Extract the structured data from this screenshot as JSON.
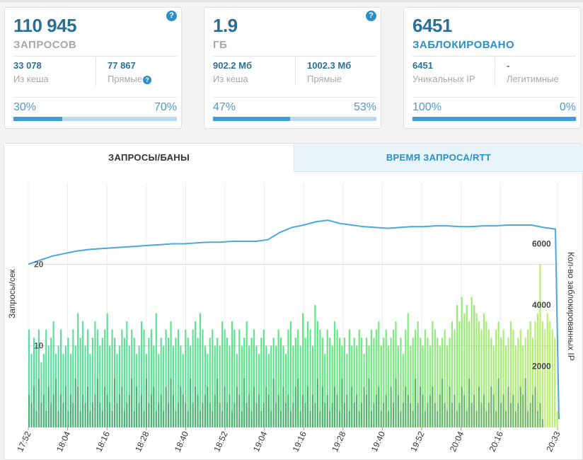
{
  "cards": [
    {
      "value": "110 945",
      "caption": "ЗАПРОСОВ",
      "caption_color": "#a8a8a8",
      "help": "?",
      "left_value": "33 078",
      "left_label": "Из кеша",
      "right_value": "77 867",
      "right_label": "Прямые",
      "right_help": "?",
      "left_pct": "30%",
      "right_pct": "70%",
      "fill_fraction": 0.3
    },
    {
      "value": "1.9",
      "caption": "ГБ",
      "caption_color": "#a8a8a8",
      "help": "?",
      "left_value": "902.2 Мб",
      "left_label": "Из кеша",
      "right_value": "1002.3 Мб",
      "right_label": "Прямые",
      "left_pct": "47%",
      "right_pct": "53%",
      "fill_fraction": 0.47
    },
    {
      "value": "6451",
      "caption": "ЗАБЛОКИРОВАНО",
      "caption_color": "#2a8ec9",
      "left_value": "6451",
      "left_label": "Уникальных IP",
      "right_value": "-",
      "right_label": "Легитимные",
      "left_pct": "100%",
      "right_pct": "0%",
      "fill_fraction": 1.0
    }
  ],
  "tabs": {
    "requests_bans": "ЗАПРОСЫ/БАНЫ",
    "request_time": "ВРЕМЯ ЗАПРОСА/RTT"
  },
  "chart_data": {
    "type": "bar+line",
    "ylabel_left": "Запросы/сек",
    "ylabel_right": "Кол-во заблокированных IP",
    "y_left_ticks": [
      "10",
      "20"
    ],
    "y_right_ticks": [
      "2000",
      "4000",
      "6000"
    ],
    "ylim_left": [
      0,
      30
    ],
    "ylim_right": [
      0,
      8000
    ],
    "x_ticks": [
      "17:52",
      "18:04",
      "18:16",
      "18:28",
      "18:40",
      "18:52",
      "19:04",
      "19:16",
      "19:28",
      "19:40",
      "19:52",
      "20:04",
      "20:16",
      "20:33"
    ],
    "bar_values": [
      12,
      9,
      11,
      10,
      12,
      8,
      9,
      12,
      10,
      11,
      13,
      9,
      10,
      12,
      9,
      10,
      11,
      9,
      12,
      10,
      14,
      11,
      13,
      10,
      12,
      9,
      11,
      13,
      12,
      10,
      11,
      12,
      14,
      10,
      12,
      11,
      9,
      10,
      12,
      11,
      13,
      10,
      12,
      11,
      9,
      10,
      13,
      12,
      9,
      11,
      12,
      10,
      14,
      9,
      11,
      10,
      12,
      11,
      13,
      10,
      11,
      12,
      10,
      9,
      12,
      11,
      10,
      12,
      13,
      11,
      14,
      12,
      10,
      9,
      11,
      12,
      10,
      11,
      10,
      13,
      12,
      11,
      10,
      13,
      12,
      9,
      12,
      10,
      11,
      13,
      10,
      11,
      12,
      10,
      9,
      11,
      12,
      10,
      9,
      10,
      11,
      10,
      12,
      11,
      10,
      9,
      12,
      13,
      10,
      11,
      12,
      10,
      14,
      11,
      13,
      12,
      10,
      15,
      13,
      12,
      11,
      9,
      12,
      11,
      10,
      13,
      12,
      11,
      10,
      11,
      9,
      12,
      10,
      11,
      10,
      12,
      11,
      9,
      11,
      10,
      12,
      11,
      12,
      13,
      10,
      11,
      12,
      10,
      11,
      12,
      13,
      10,
      11,
      9,
      12,
      14,
      10,
      11,
      12,
      13,
      11,
      10,
      12,
      11,
      10,
      13,
      12,
      11,
      10,
      11,
      12,
      10,
      11,
      13,
      12,
      15,
      13,
      16,
      14,
      15,
      13,
      16,
      15,
      14,
      13,
      12,
      14,
      13,
      12,
      11,
      10,
      12,
      13,
      11,
      12,
      10,
      11,
      13,
      12,
      10,
      11,
      12,
      10,
      11,
      12,
      13,
      11,
      13,
      14,
      20,
      13,
      12,
      14,
      13,
      12,
      11,
      2
    ],
    "dark_values": [
      4,
      3,
      5,
      2,
      6,
      3,
      4,
      2,
      5,
      3,
      4,
      6,
      2,
      4,
      3,
      5,
      2,
      4,
      3,
      6,
      5,
      2,
      4,
      3,
      5,
      2,
      3,
      4,
      6,
      3,
      2,
      5,
      4,
      3,
      2,
      6,
      3,
      4,
      5,
      2,
      3,
      4,
      6,
      2,
      5,
      3,
      4,
      2,
      6,
      3,
      4,
      5,
      2,
      3,
      4,
      2,
      5,
      3,
      6,
      4,
      2,
      3,
      5,
      4,
      3,
      2,
      6,
      3,
      5,
      4,
      2,
      3,
      4,
      5,
      3,
      2,
      4,
      6,
      3,
      2,
      5,
      3,
      4,
      2,
      3,
      5,
      4,
      2,
      6,
      3,
      4,
      2,
      5,
      3,
      4,
      2,
      3,
      5,
      4,
      2,
      6,
      3,
      4,
      2,
      5,
      3,
      4,
      2,
      3,
      5,
      6,
      2,
      4,
      3,
      5,
      2,
      4,
      3,
      6,
      2,
      5,
      3,
      4,
      2,
      3,
      5,
      4,
      2,
      6,
      3,
      4,
      2,
      5,
      3,
      4,
      2,
      3,
      5,
      4,
      6,
      2,
      3,
      4,
      5,
      2,
      3,
      4,
      2,
      5,
      3,
      6,
      4,
      2,
      3,
      5,
      4,
      3,
      2,
      6,
      3,
      5,
      4,
      2,
      3,
      4,
      5,
      3,
      2,
      4,
      6,
      3,
      2,
      5,
      3,
      4,
      2,
      3,
      5,
      4,
      2,
      6,
      3,
      4,
      2,
      5,
      3,
      4,
      2,
      3,
      5,
      4,
      2,
      6,
      3,
      4,
      2,
      5,
      3,
      4,
      2,
      3,
      5,
      4,
      6,
      2,
      3,
      4,
      5,
      2,
      3,
      1
    ],
    "line_values": [
      20,
      20.5,
      21,
      21.3,
      21.6,
      21.8,
      21.9,
      22.0,
      22.1,
      22.2,
      22.3,
      22.4,
      22.5,
      22.5,
      22.6,
      22.7,
      22.7,
      22.8,
      22.8,
      22.8,
      23.0,
      23.9,
      24.5,
      24.8,
      25.2,
      25.4,
      25.0,
      24.8,
      24.6,
      24.5,
      24.4,
      24.5,
      24.6,
      24.6,
      24.7,
      24.7,
      24.6,
      24.6,
      24.7,
      24.7,
      24.8,
      24.8,
      24.8,
      24.5,
      24.3,
      1
    ]
  }
}
